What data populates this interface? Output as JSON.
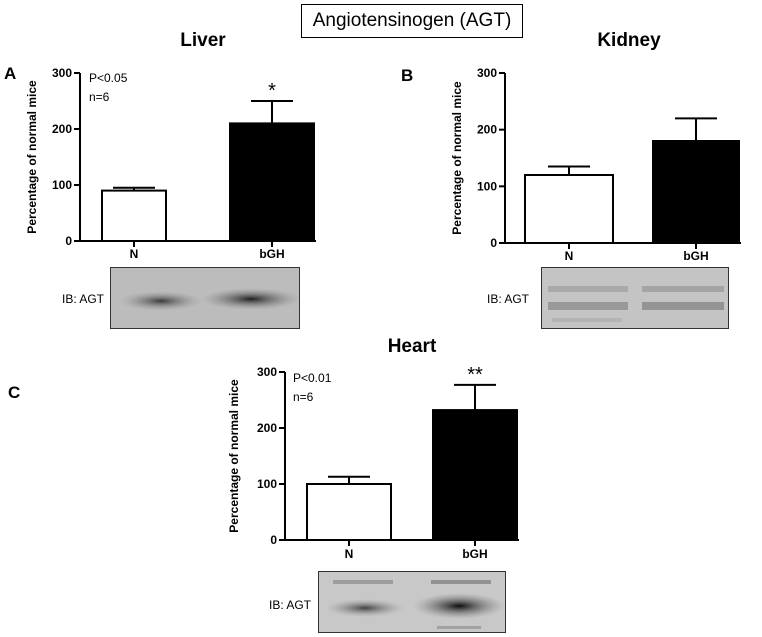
{
  "main_title": "Angiotensinogen (AGT)",
  "panels": [
    {
      "letter": "A",
      "title": "Liver",
      "blot_label": "IB: AGT"
    },
    {
      "letter": "B",
      "title": "Kidney",
      "blot_label": "IB: AGT"
    },
    {
      "letter": "C",
      "title": "Heart",
      "blot_label": "IB: AGT"
    }
  ],
  "colors": {
    "N": "#ffffff",
    "bGH": "#000000",
    "axis": "#000000"
  },
  "chart_data": [
    {
      "type": "bar",
      "title": "Liver",
      "categories": [
        "N",
        "bGH"
      ],
      "values": [
        90,
        210
      ],
      "errors": [
        5,
        40
      ],
      "ylabel": "Percentage of normal mice",
      "xlabel": "",
      "ylim": [
        0,
        300
      ],
      "yticks": [
        0,
        100,
        200,
        300
      ],
      "significance": [
        "",
        "*"
      ],
      "annotation": [
        "P<0.05",
        "n=6"
      ],
      "grid": false
    },
    {
      "type": "bar",
      "title": "Kidney",
      "categories": [
        "N",
        "bGH"
      ],
      "values": [
        120,
        180
      ],
      "errors": [
        15,
        40
      ],
      "ylabel": "Percentage of normal mice",
      "xlabel": "",
      "ylim": [
        0,
        300
      ],
      "yticks": [
        0,
        100,
        200,
        300
      ],
      "significance": [
        "",
        ""
      ],
      "annotation": [],
      "grid": false
    },
    {
      "type": "bar",
      "title": "Heart",
      "categories": [
        "N",
        "bGH"
      ],
      "values": [
        100,
        232
      ],
      "errors": [
        13,
        45
      ],
      "ylabel": "Percentage of normal mice",
      "xlabel": "",
      "ylim": [
        0,
        300
      ],
      "yticks": [
        0,
        100,
        200,
        300
      ],
      "significance": [
        "",
        "**"
      ],
      "annotation": [
        "P<0.01",
        "n=6"
      ],
      "grid": false
    }
  ]
}
